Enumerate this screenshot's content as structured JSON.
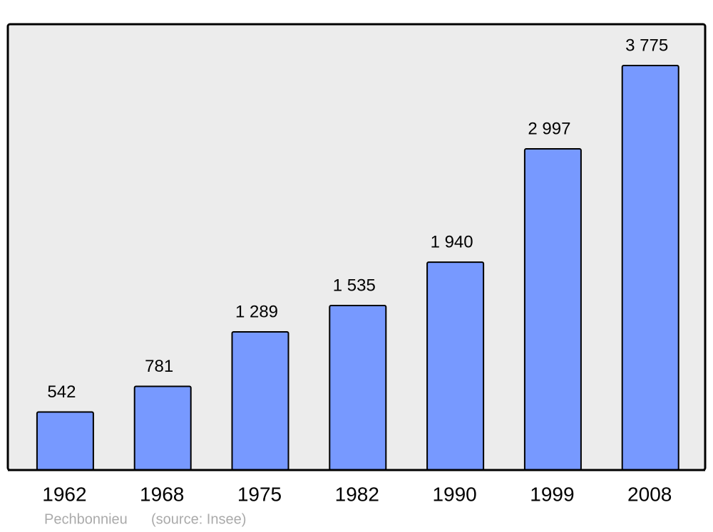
{
  "chart_data": {
    "type": "bar",
    "categories": [
      "1962",
      "1968",
      "1975",
      "1982",
      "1990",
      "1999",
      "2008"
    ],
    "values": [
      542,
      781,
      1289,
      1535,
      1940,
      2997,
      3775
    ],
    "value_labels": [
      "542",
      "781",
      "1 289",
      "1 535",
      "1 940",
      "2 997",
      "3 775"
    ],
    "color": "#7799ff",
    "footer": "Pechbonnieu",
    "source": "(source: Insee)"
  }
}
